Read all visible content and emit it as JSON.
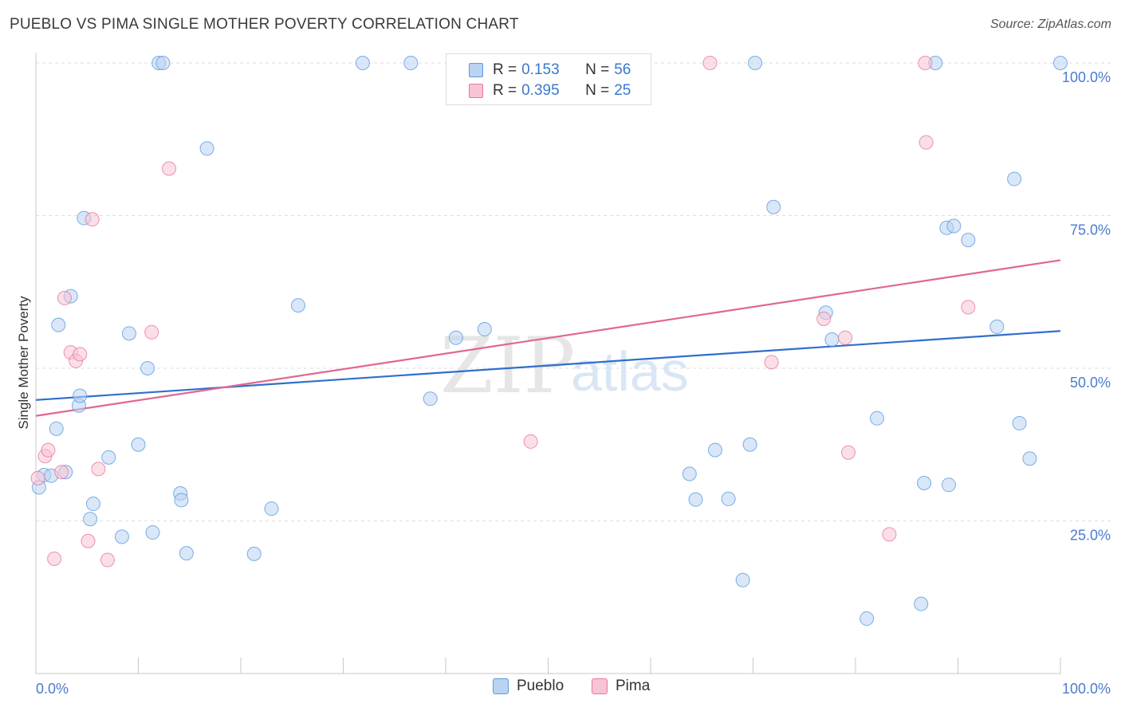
{
  "title": "PUEBLO VS PIMA SINGLE MOTHER POVERTY CORRELATION CHART",
  "source": "Source: ZipAtlas.com",
  "watermark": {
    "part1": "ZIP",
    "part2": "atlas"
  },
  "legend": {
    "rows": [
      {
        "r_label": "R =",
        "r_value": "0.153",
        "n_label": "N =",
        "n_value": "56"
      },
      {
        "r_label": "R =",
        "r_value": "0.395",
        "n_label": "N =",
        "n_value": "25"
      }
    ]
  },
  "bottom_legend": {
    "pueblo": "Pueblo",
    "pima": "Pima"
  },
  "chart_data": {
    "type": "scatter",
    "title": "PUEBLO VS PIMA SINGLE MOTHER POVERTY CORRELATION CHART",
    "xlabel": "",
    "ylabel": "Single Mother Poverty",
    "xlim": [
      0,
      100
    ],
    "ylim": [
      0,
      100
    ],
    "x_tick_labels": [
      "0.0%",
      "100.0%"
    ],
    "y_tick_values": [
      25,
      50,
      75,
      100
    ],
    "y_tick_labels": [
      "25.0%",
      "50.0%",
      "75.0%",
      "100.0%"
    ],
    "grid": true,
    "colors": {
      "pueblo": "#5b9be0",
      "pueblo_fill": "#b9d3f3",
      "pima": "#e8789d",
      "pima_fill": "#f7c4d4"
    },
    "series": [
      {
        "name": "Pueblo",
        "r": 0.153,
        "n": 56,
        "trend": {
          "x0": 0,
          "y0": 44.8,
          "x1": 100,
          "y1": 56.1
        },
        "points": [
          [
            0.3,
            30.5
          ],
          [
            0.8,
            32.5
          ],
          [
            1.5,
            32.4
          ],
          [
            2.0,
            40.1
          ],
          [
            2.2,
            57.1
          ],
          [
            2.9,
            33.0
          ],
          [
            3.4,
            61.8
          ],
          [
            4.2,
            43.9
          ],
          [
            4.3,
            45.5
          ],
          [
            4.7,
            74.6
          ],
          [
            5.3,
            25.3
          ],
          [
            5.6,
            27.8
          ],
          [
            7.1,
            35.4
          ],
          [
            8.4,
            22.4
          ],
          [
            9.1,
            55.7
          ],
          [
            10.0,
            37.5
          ],
          [
            10.9,
            50.0
          ],
          [
            11.4,
            23.1
          ],
          [
            12.0,
            100
          ],
          [
            12.4,
            100
          ],
          [
            14.1,
            29.5
          ],
          [
            14.2,
            28.4
          ],
          [
            14.7,
            19.7
          ],
          [
            16.7,
            86.0
          ],
          [
            21.3,
            19.6
          ],
          [
            23.0,
            27.0
          ],
          [
            25.6,
            60.3
          ],
          [
            31.9,
            100
          ],
          [
            36.6,
            100
          ],
          [
            38.5,
            45.0
          ],
          [
            41.0,
            55.0
          ],
          [
            43.8,
            56.4
          ],
          [
            63.8,
            32.7
          ],
          [
            64.4,
            28.5
          ],
          [
            66.3,
            36.6
          ],
          [
            67.6,
            28.6
          ],
          [
            69.0,
            15.3
          ],
          [
            69.7,
            37.5
          ],
          [
            70.2,
            100
          ],
          [
            72.0,
            76.4
          ],
          [
            77.1,
            59.1
          ],
          [
            77.7,
            54.7
          ],
          [
            81.1,
            9.0
          ],
          [
            82.1,
            41.8
          ],
          [
            86.4,
            11.4
          ],
          [
            86.7,
            31.2
          ],
          [
            87.8,
            100
          ],
          [
            88.9,
            73.0
          ],
          [
            89.6,
            73.3
          ],
          [
            89.1,
            30.9
          ],
          [
            91.0,
            71.0
          ],
          [
            93.8,
            56.8
          ],
          [
            95.5,
            81.0
          ],
          [
            96.0,
            41.0
          ],
          [
            97.0,
            35.2
          ],
          [
            100,
            100
          ]
        ]
      },
      {
        "name": "Pima",
        "r": 0.395,
        "n": 25,
        "trend": {
          "x0": 0,
          "y0": 42.2,
          "x1": 100,
          "y1": 67.7
        },
        "points": [
          [
            0.2,
            32.0
          ],
          [
            0.9,
            35.6
          ],
          [
            1.2,
            36.6
          ],
          [
            1.8,
            18.8
          ],
          [
            2.5,
            33.0
          ],
          [
            2.8,
            61.5
          ],
          [
            3.4,
            52.6
          ],
          [
            3.9,
            51.2
          ],
          [
            4.3,
            52.3
          ],
          [
            5.1,
            21.7
          ],
          [
            5.5,
            74.4
          ],
          [
            6.1,
            33.5
          ],
          [
            7.0,
            18.6
          ],
          [
            11.3,
            55.9
          ],
          [
            13.0,
            82.7
          ],
          [
            48.3,
            38.0
          ],
          [
            65.8,
            100
          ],
          [
            71.8,
            51.0
          ],
          [
            76.9,
            58.1
          ],
          [
            79.0,
            55.0
          ],
          [
            79.3,
            36.2
          ],
          [
            83.3,
            22.8
          ],
          [
            86.8,
            100
          ],
          [
            86.9,
            87.0
          ],
          [
            91.0,
            60.0
          ]
        ]
      }
    ]
  }
}
